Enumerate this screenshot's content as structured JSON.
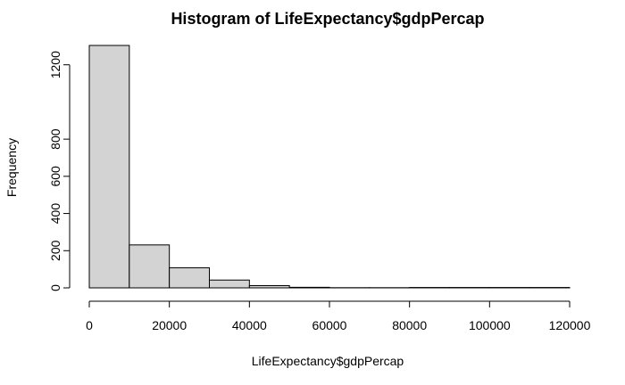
{
  "chart_data": {
    "type": "bar",
    "title": "Histogram of LifeExpectancy$gdpPercap",
    "xlabel": "LifeExpectancy$gdpPercap",
    "ylabel": "Frequency",
    "bin_edges": [
      0,
      10000,
      20000,
      30000,
      40000,
      50000,
      60000,
      70000,
      80000,
      90000,
      100000,
      110000,
      120000
    ],
    "values": [
      1304,
      231,
      108,
      42,
      12,
      3,
      1,
      1,
      2,
      2,
      2,
      2
    ],
    "xlim": [
      0,
      120000
    ],
    "ylim": [
      0,
      1304
    ],
    "x_ticks": [
      0,
      20000,
      40000,
      60000,
      80000,
      100000,
      120000
    ],
    "x_tick_labels": [
      "0",
      "20000",
      "40000",
      "60000",
      "80000",
      "100000",
      "120000"
    ],
    "y_ticks": [
      0,
      200,
      400,
      600,
      800,
      1200
    ],
    "y_tick_labels": [
      "0",
      "200",
      "400",
      "600",
      "800",
      "1200"
    ],
    "grid": false,
    "bar_color": "#d3d3d3"
  }
}
